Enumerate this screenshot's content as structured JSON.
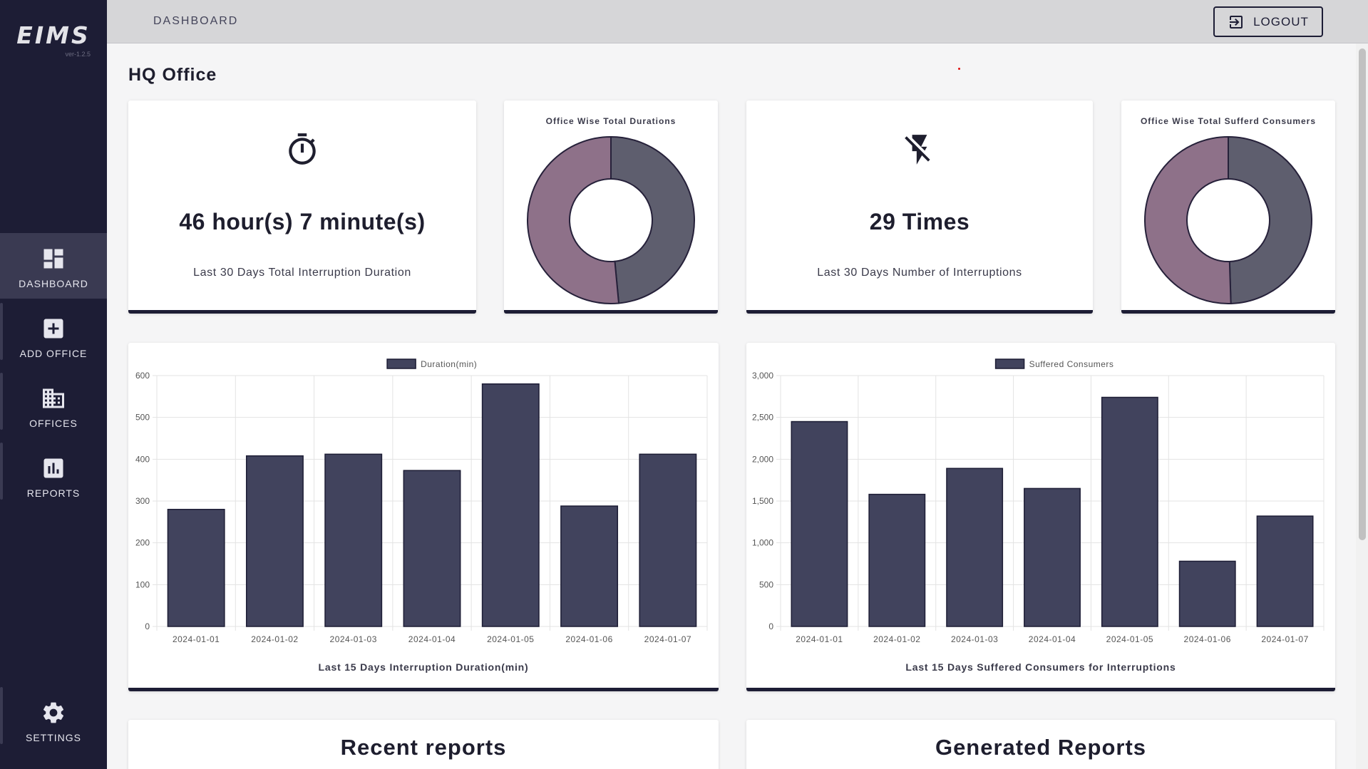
{
  "app": {
    "logo": "EIMS",
    "version": "ver-1.2.5"
  },
  "sidebar": {
    "items": [
      {
        "label": "DASHBOARD",
        "icon": "dashboard-icon"
      },
      {
        "label": "ADD OFFICE",
        "icon": "add-box-icon"
      },
      {
        "label": "OFFICES",
        "icon": "building-icon"
      },
      {
        "label": "REPORTS",
        "icon": "bar-chart-icon"
      }
    ],
    "settings": {
      "label": "SETTINGS",
      "icon": "gear-icon"
    }
  },
  "header": {
    "breadcrumb": "DASHBOARD",
    "logout_label": "LOGOUT"
  },
  "page": {
    "title": "HQ Office"
  },
  "stats": {
    "duration": {
      "value": "46 hour(s) 7 minute(s)",
      "label": "Last 30 Days Total Interruption Duration",
      "icon": "timer-icon"
    },
    "count": {
      "value": "29 Times",
      "label": "Last 30 Days Number of Interruptions",
      "icon": "flash-off-icon"
    }
  },
  "donuts": {
    "durations": {
      "title": "Office Wise Total Durations",
      "slices": [
        0.485,
        0.515
      ],
      "colors": [
        "#5e5e6e",
        "#8e7189"
      ]
    },
    "consumers": {
      "title": "Office Wise Total Sufferd Consumers",
      "slices": [
        0.495,
        0.505
      ],
      "colors": [
        "#5e5e6e",
        "#8e7189"
      ]
    }
  },
  "chart_data": [
    {
      "type": "bar",
      "title": "Last 15 Days Interruption Duration(min)",
      "categories": [
        "2024-01-01",
        "2024-01-02",
        "2024-01-03",
        "2024-01-04",
        "2024-01-05",
        "2024-01-06",
        "2024-01-07"
      ],
      "series": [
        {
          "name": "Duration(min)",
          "values": [
            280,
            408,
            412,
            373,
            580,
            288,
            412
          ]
        }
      ],
      "ylim": [
        0,
        600
      ],
      "yticks": [
        "0",
        "100",
        "200",
        "300",
        "400",
        "500",
        "600"
      ],
      "grid": true,
      "legend": "top-center",
      "color": "#41435d"
    },
    {
      "type": "bar",
      "title": "Last 15 Days Suffered Consumers for Interruptions",
      "categories": [
        "2024-01-01",
        "2024-01-02",
        "2024-01-03",
        "2024-01-04",
        "2024-01-05",
        "2024-01-06",
        "2024-01-07"
      ],
      "series": [
        {
          "name": "Suffered Consumers",
          "values": [
            2450,
            1580,
            1890,
            1650,
            2740,
            780,
            1320
          ]
        }
      ],
      "ylim": [
        0,
        3000
      ],
      "yticks": [
        "0",
        "500",
        "1,000",
        "1,500",
        "2,000",
        "2,500",
        "3,000"
      ],
      "grid": true,
      "legend": "top-center",
      "color": "#41435d"
    }
  ],
  "sections": {
    "recent": "Recent reports",
    "generated": "Generated Reports"
  }
}
